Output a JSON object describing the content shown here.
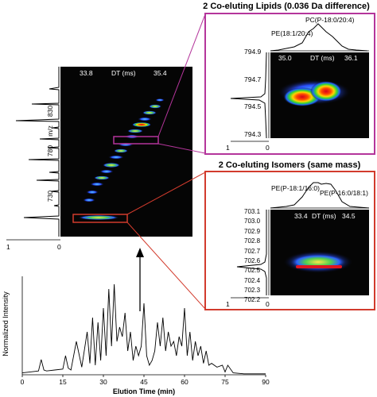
{
  "colors": {
    "magenta_box": "#b4359b",
    "red_box": "#d23b2d",
    "heatmap_bg": "#050505",
    "trace": "#000000"
  },
  "top_panel": {
    "title": "2 Co-eluting Lipids (0.036 Da difference)",
    "peak_labels": [
      "PE(18:1/20:4)",
      "PC(P-18:0/20:4)"
    ],
    "dt_label": "DT (ms)",
    "dt_values": [
      "35.0",
      "36.1"
    ],
    "y_ticks": [
      "794.9",
      "794.7",
      "794.5",
      "794.3"
    ],
    "x_ticks": [
      "1",
      "0"
    ]
  },
  "bottom_panel": {
    "title": "2 Co-eluting Isomers (same mass)",
    "peak_labels": [
      "PE(P-18:1/16:0)",
      "PE(P-16:0/18:1)"
    ],
    "dt_label": "DT (ms)",
    "dt_values": [
      "33.4",
      "34.5"
    ],
    "y_ticks": [
      "703.1",
      "703.0",
      "702.9",
      "702.8",
      "702.7",
      "702.6",
      "702.5",
      "702.4",
      "702.3",
      "702.2"
    ],
    "x_ticks": [
      "1",
      "0"
    ]
  },
  "main_panel": {
    "dt_label": "DT (ms)",
    "dt_values": [
      "33.8",
      "35.4"
    ],
    "mz_label": "m/z",
    "mz_ticks": [
      "830",
      "780",
      "730"
    ],
    "x_ticks": [
      "1",
      "0"
    ]
  },
  "chart_data": {
    "type": "line",
    "title": "",
    "xlabel": "Elution Time (min)",
    "ylabel": "Normalized Intensity",
    "xlim": [
      0,
      90
    ],
    "xticks": [
      "0",
      "15",
      "30",
      "45",
      "60",
      "75",
      "90"
    ],
    "x": [
      0,
      3,
      6,
      7,
      8,
      9,
      12,
      15,
      16,
      17,
      18,
      20,
      22,
      24,
      25,
      26,
      27,
      28,
      29,
      30,
      31,
      32,
      33,
      34,
      35,
      36,
      37,
      38,
      39,
      40,
      41,
      42,
      43,
      44,
      45,
      46,
      47,
      48,
      49,
      50,
      51,
      52,
      53,
      54,
      55,
      56,
      57,
      58,
      59,
      60,
      61,
      62,
      63,
      64,
      65,
      66,
      67,
      68,
      69,
      70,
      72,
      74,
      75,
      76,
      78,
      82,
      86,
      90
    ],
    "values": [
      0.02,
      0.03,
      0.04,
      0.16,
      0.05,
      0.04,
      0.05,
      0.06,
      0.2,
      0.07,
      0.05,
      0.35,
      0.08,
      0.45,
      0.12,
      0.6,
      0.1,
      0.55,
      0.15,
      0.7,
      0.2,
      0.9,
      0.3,
      0.95,
      0.35,
      0.5,
      0.4,
      0.65,
      0.25,
      0.45,
      0.15,
      0.3,
      0.2,
      0.3,
      0.75,
      0.2,
      0.1,
      0.15,
      0.25,
      0.55,
      0.3,
      0.6,
      0.25,
      0.45,
      0.3,
      0.35,
      0.2,
      0.4,
      0.3,
      0.7,
      0.2,
      0.45,
      0.15,
      0.35,
      0.2,
      0.3,
      0.12,
      0.25,
      0.1,
      0.12,
      0.08,
      0.1,
      0.03,
      0.1,
      0.02,
      0.01,
      0.01,
      0.01
    ]
  }
}
